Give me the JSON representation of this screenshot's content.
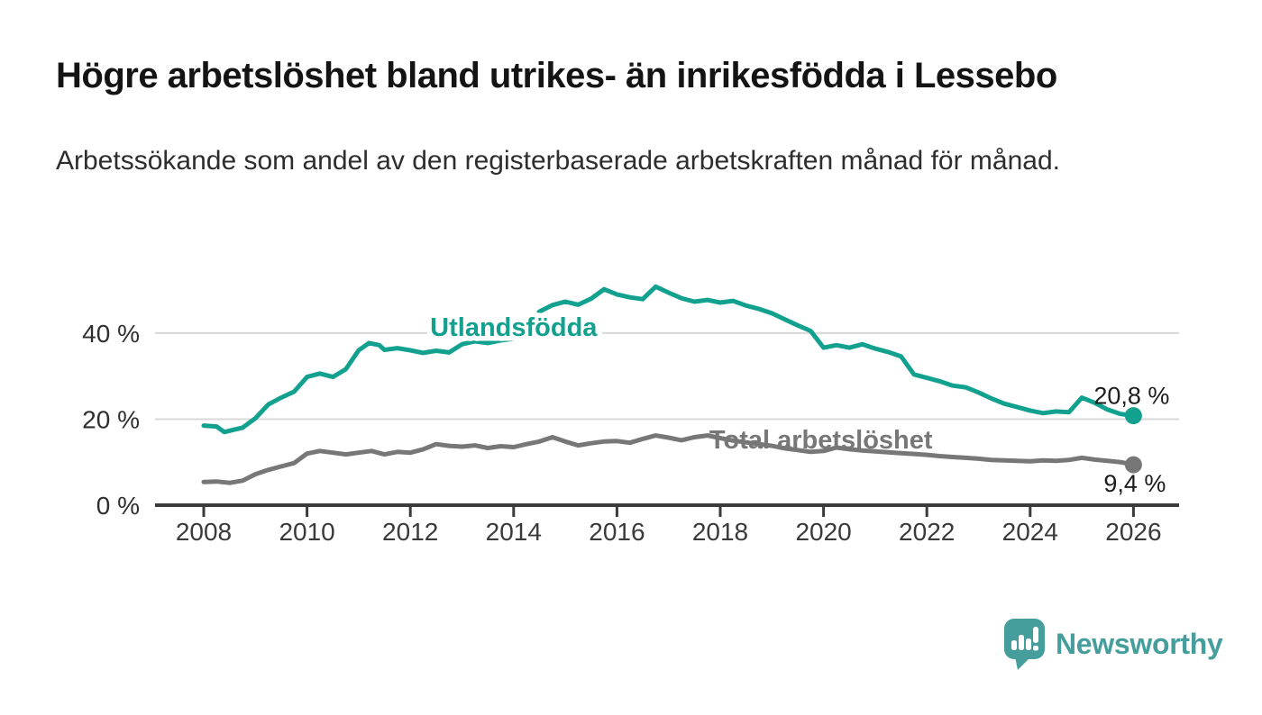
{
  "chart_data": {
    "type": "line",
    "title": "Högre arbetslöshet bland utrikes- än inrikesfödda i Lessebo",
    "subtitle": "Arbetssökande som andel av den registerbaserade arbetskraften månad för månad.",
    "unit": "%",
    "grid": "horizontal",
    "legend": "inline-labels",
    "x_axis": {
      "label": "",
      "tick_years": [
        2008,
        2010,
        2012,
        2014,
        2016,
        2018,
        2020,
        2022,
        2024,
        2026
      ],
      "range": [
        2008,
        2026
      ]
    },
    "y_axis": {
      "label": "",
      "ticks": [
        {
          "value": 0,
          "label": "0 %"
        },
        {
          "value": 20,
          "label": "20 %"
        },
        {
          "value": 40,
          "label": "40 %"
        }
      ],
      "range": [
        0,
        56
      ]
    },
    "series": [
      {
        "name": "Utlandsfödda",
        "color": "#13A18F",
        "end_label": "20,8 %",
        "end_value": 20.8,
        "end_label_offset": [
          40,
          -13
        ],
        "inline_label": {
          "x": 2014.0,
          "y": 39.3,
          "halo": true
        },
        "points": [
          [
            2008.0,
            18.5
          ],
          [
            2008.25,
            18.3
          ],
          [
            2008.4,
            17.0
          ],
          [
            2008.6,
            17.6
          ],
          [
            2008.75,
            18.0
          ],
          [
            2009.0,
            20.2
          ],
          [
            2009.25,
            23.4
          ],
          [
            2009.5,
            25.0
          ],
          [
            2009.75,
            26.4
          ],
          [
            2010.0,
            29.8
          ],
          [
            2010.25,
            30.6
          ],
          [
            2010.5,
            29.8
          ],
          [
            2010.75,
            31.6
          ],
          [
            2011.0,
            36.0
          ],
          [
            2011.2,
            37.7
          ],
          [
            2011.4,
            37.2
          ],
          [
            2011.5,
            36.1
          ],
          [
            2011.75,
            36.5
          ],
          [
            2012.0,
            36.0
          ],
          [
            2012.25,
            35.4
          ],
          [
            2012.5,
            35.9
          ],
          [
            2012.75,
            35.5
          ],
          [
            2013.0,
            37.4
          ],
          [
            2013.25,
            38.1
          ],
          [
            2013.5,
            37.7
          ],
          [
            2013.75,
            38.3
          ],
          [
            2014.0,
            38.7
          ],
          [
            2014.25,
            39.6
          ],
          [
            2014.5,
            45.0
          ],
          [
            2014.75,
            46.5
          ],
          [
            2015.0,
            47.3
          ],
          [
            2015.25,
            46.6
          ],
          [
            2015.5,
            48.0
          ],
          [
            2015.75,
            50.2
          ],
          [
            2016.0,
            49.0
          ],
          [
            2016.25,
            48.3
          ],
          [
            2016.5,
            47.9
          ],
          [
            2016.75,
            50.8
          ],
          [
            2017.0,
            49.4
          ],
          [
            2017.25,
            48.1
          ],
          [
            2017.5,
            47.3
          ],
          [
            2017.75,
            47.7
          ],
          [
            2018.0,
            47.1
          ],
          [
            2018.25,
            47.5
          ],
          [
            2018.5,
            46.4
          ],
          [
            2018.75,
            45.6
          ],
          [
            2019.0,
            44.6
          ],
          [
            2019.25,
            43.2
          ],
          [
            2019.5,
            41.8
          ],
          [
            2019.75,
            40.5
          ],
          [
            2020.0,
            36.6
          ],
          [
            2020.25,
            37.2
          ],
          [
            2020.5,
            36.6
          ],
          [
            2020.75,
            37.4
          ],
          [
            2021.0,
            36.4
          ],
          [
            2021.25,
            35.6
          ],
          [
            2021.5,
            34.6
          ],
          [
            2021.75,
            30.4
          ],
          [
            2022.0,
            29.6
          ],
          [
            2022.25,
            28.8
          ],
          [
            2022.5,
            27.8
          ],
          [
            2022.75,
            27.4
          ],
          [
            2023.0,
            26.2
          ],
          [
            2023.25,
            24.8
          ],
          [
            2023.5,
            23.6
          ],
          [
            2023.75,
            22.8
          ],
          [
            2024.0,
            22.0
          ],
          [
            2024.25,
            21.4
          ],
          [
            2024.5,
            21.8
          ],
          [
            2024.75,
            21.6
          ],
          [
            2025.0,
            25.0
          ],
          [
            2025.25,
            23.8
          ],
          [
            2025.5,
            22.2
          ],
          [
            2025.75,
            21.2
          ],
          [
            2026.0,
            20.8
          ]
        ]
      },
      {
        "name": "Total arbetslöshet",
        "color": "#777777",
        "end_label": "9,4 %",
        "end_value": 9.4,
        "end_label_offset": [
          36,
          30
        ],
        "inline_label": {
          "x": 2019.95,
          "y": 13.2,
          "halo": false
        },
        "points": [
          [
            2008.0,
            5.4
          ],
          [
            2008.25,
            5.5
          ],
          [
            2008.5,
            5.2
          ],
          [
            2008.75,
            5.7
          ],
          [
            2009.0,
            7.2
          ],
          [
            2009.25,
            8.2
          ],
          [
            2009.5,
            9.0
          ],
          [
            2009.75,
            9.8
          ],
          [
            2010.0,
            12.0
          ],
          [
            2010.25,
            12.6
          ],
          [
            2010.5,
            12.2
          ],
          [
            2010.75,
            11.8
          ],
          [
            2011.0,
            12.2
          ],
          [
            2011.25,
            12.6
          ],
          [
            2011.5,
            11.8
          ],
          [
            2011.75,
            12.4
          ],
          [
            2012.0,
            12.2
          ],
          [
            2012.25,
            13.0
          ],
          [
            2012.5,
            14.2
          ],
          [
            2012.75,
            13.8
          ],
          [
            2013.0,
            13.6
          ],
          [
            2013.25,
            13.9
          ],
          [
            2013.5,
            13.3
          ],
          [
            2013.75,
            13.7
          ],
          [
            2014.0,
            13.5
          ],
          [
            2014.25,
            14.2
          ],
          [
            2014.5,
            14.8
          ],
          [
            2014.75,
            15.8
          ],
          [
            2015.0,
            14.8
          ],
          [
            2015.25,
            13.9
          ],
          [
            2015.5,
            14.4
          ],
          [
            2015.75,
            14.8
          ],
          [
            2016.0,
            14.9
          ],
          [
            2016.25,
            14.5
          ],
          [
            2016.5,
            15.4
          ],
          [
            2016.75,
            16.2
          ],
          [
            2017.0,
            15.7
          ],
          [
            2017.25,
            15.1
          ],
          [
            2017.5,
            15.8
          ],
          [
            2017.75,
            16.2
          ],
          [
            2018.0,
            15.6
          ],
          [
            2018.25,
            15.0
          ],
          [
            2018.5,
            14.6
          ],
          [
            2018.75,
            14.2
          ],
          [
            2019.0,
            13.8
          ],
          [
            2019.25,
            13.2
          ],
          [
            2019.5,
            12.8
          ],
          [
            2019.75,
            12.4
          ],
          [
            2020.0,
            12.6
          ],
          [
            2020.25,
            13.4
          ],
          [
            2020.5,
            13.0
          ],
          [
            2020.75,
            12.7
          ],
          [
            2021.0,
            12.5
          ],
          [
            2021.25,
            12.3
          ],
          [
            2021.5,
            12.1
          ],
          [
            2021.75,
            11.9
          ],
          [
            2022.0,
            11.7
          ],
          [
            2022.25,
            11.4
          ],
          [
            2022.5,
            11.2
          ],
          [
            2022.75,
            11.0
          ],
          [
            2023.0,
            10.8
          ],
          [
            2023.25,
            10.5
          ],
          [
            2023.5,
            10.4
          ],
          [
            2023.75,
            10.3
          ],
          [
            2024.0,
            10.2
          ],
          [
            2024.25,
            10.4
          ],
          [
            2024.5,
            10.3
          ],
          [
            2024.75,
            10.5
          ],
          [
            2025.0,
            11.0
          ],
          [
            2025.25,
            10.6
          ],
          [
            2025.5,
            10.3
          ],
          [
            2025.75,
            10.0
          ],
          [
            2026.0,
            9.4
          ]
        ]
      }
    ]
  },
  "footer": {
    "brand": "Newsworthy",
    "logo_color": "#459E9B"
  },
  "style_colors": {
    "accent_teal": "#13A18F",
    "series_gray": "#777777",
    "grid": "#D8D8D8",
    "axis": "#3B3B3B",
    "text_dark": "#141414"
  }
}
